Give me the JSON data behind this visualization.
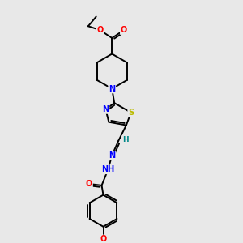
{
  "bg_color": "#e8e8e8",
  "bond_color": "#000000",
  "atom_colors": {
    "N": "#0000ff",
    "O": "#ff0000",
    "S": "#bbbb00",
    "H": "#008888",
    "C": "#000000"
  },
  "figsize": [
    3.0,
    3.0
  ],
  "dpi": 100
}
